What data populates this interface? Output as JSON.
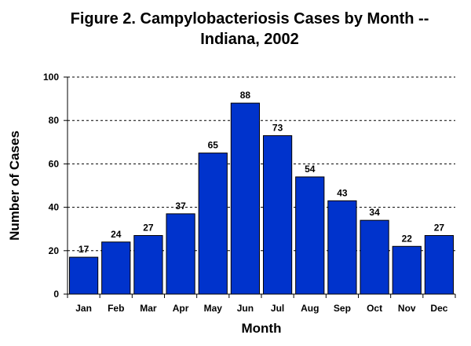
{
  "colors": {
    "bar": "#0033cc",
    "bar_edge": "#000000",
    "grid": "#000000"
  },
  "chart_data": {
    "type": "bar",
    "title_lines": [
      "Figure 2.  Campylobacteriosis Cases by Month --",
      "Indiana, 2002"
    ],
    "categories": [
      "Jan",
      "Feb",
      "Mar",
      "Apr",
      "May",
      "Jun",
      "Jul",
      "Aug",
      "Sep",
      "Oct",
      "Nov",
      "Dec"
    ],
    "values": [
      17,
      24,
      27,
      37,
      65,
      88,
      73,
      54,
      43,
      34,
      22,
      27
    ],
    "xlabel": "Month",
    "ylabel": "Number of Cases",
    "ylim": [
      0,
      100
    ],
    "yticks": [
      0,
      20,
      40,
      60,
      80,
      100
    ],
    "grid": "dashed horizontal",
    "legend": "none"
  }
}
